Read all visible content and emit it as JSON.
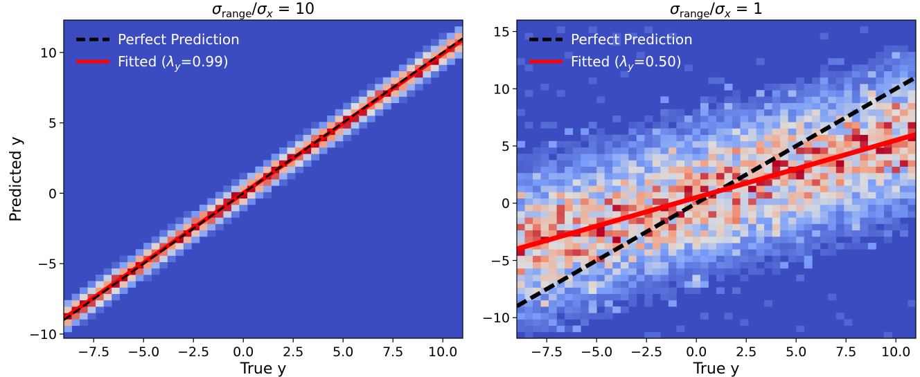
{
  "chart_data": [
    {
      "type": "heatmap",
      "title": "σrange/σx = 10",
      "title_parts": {
        "sym": "σ",
        "sub1": "range",
        "slash": "/",
        "sym2": "σ",
        "sub2": "x",
        "rhs": " = 10"
      },
      "xlabel": "True y",
      "ylabel": "Predicted y",
      "xlim": [
        -9,
        11
      ],
      "ylim": [
        -10.3,
        12.3
      ],
      "xticks": [
        "−7.5",
        "−5.0",
        "−2.5",
        "0.0",
        "2.5",
        "5.0",
        "7.5",
        "10.0"
      ],
      "xtick_values": [
        -7.5,
        -5.0,
        -2.5,
        0.0,
        2.5,
        5.0,
        7.5,
        10.0
      ],
      "yticks": [
        "−10",
        "−5",
        "0",
        "5",
        "10"
      ],
      "ytick_values": [
        -10,
        -5,
        0,
        5,
        10
      ],
      "grid": false,
      "colormap": "coolwarm",
      "background_color": "#3b4cc0",
      "lambda_y": 0.99,
      "spread": 0.55,
      "legend": {
        "placement": "top-left",
        "entries": [
          {
            "label": "Perfect Prediction",
            "style": "dashed",
            "color": "#000000"
          },
          {
            "label_prefix": "Fitted (",
            "label_symbol": "λ",
            "label_sub": "y",
            "label_suffix": "=0.99)",
            "style": "solid",
            "color": "#ff0000"
          }
        ]
      },
      "series": [
        {
          "name": "Perfect Prediction",
          "x": [
            -9,
            11
          ],
          "y": [
            -9,
            11
          ]
        },
        {
          "name": "Fitted (λy=0.99)",
          "x": [
            -9,
            11
          ],
          "y": [
            -8.9,
            10.9
          ]
        }
      ]
    },
    {
      "type": "heatmap",
      "title": "σrange/σx = 1",
      "title_parts": {
        "sym": "σ",
        "sub1": "range",
        "slash": "/",
        "sym2": "σ",
        "sub2": "x",
        "rhs": " = 1"
      },
      "xlabel": "True y",
      "ylabel": "",
      "xlim": [
        -9,
        11
      ],
      "ylim": [
        -11.8,
        16
      ],
      "xticks": [
        "−7.5",
        "−5.0",
        "−2.5",
        "0.0",
        "2.5",
        "5.0",
        "7.5",
        "10.0"
      ],
      "xtick_values": [
        -7.5,
        -5.0,
        -2.5,
        0.0,
        2.5,
        5.0,
        7.5,
        10.0
      ],
      "yticks": [
        "−10",
        "−5",
        "0",
        "5",
        "10",
        "15"
      ],
      "ytick_values": [
        -10,
        -5,
        0,
        5,
        10,
        15
      ],
      "grid": false,
      "colormap": "coolwarm",
      "background_color": "#3b4cc0",
      "lambda_y": 0.5,
      "spread": 3.6,
      "legend": {
        "placement": "top-left",
        "entries": [
          {
            "label": "Perfect Prediction",
            "style": "dashed",
            "color": "#000000"
          },
          {
            "label_prefix": "Fitted (",
            "label_symbol": "λ",
            "label_sub": "y",
            "label_suffix": "=0.50)",
            "style": "solid",
            "color": "#ff0000"
          }
        ]
      },
      "series": [
        {
          "name": "Perfect Prediction",
          "x": [
            -9,
            11
          ],
          "y": [
            -9,
            11
          ]
        },
        {
          "name": "Fitted (λy=0.50)",
          "x": [
            -9,
            11
          ],
          "y": [
            -4,
            6
          ]
        }
      ]
    }
  ]
}
